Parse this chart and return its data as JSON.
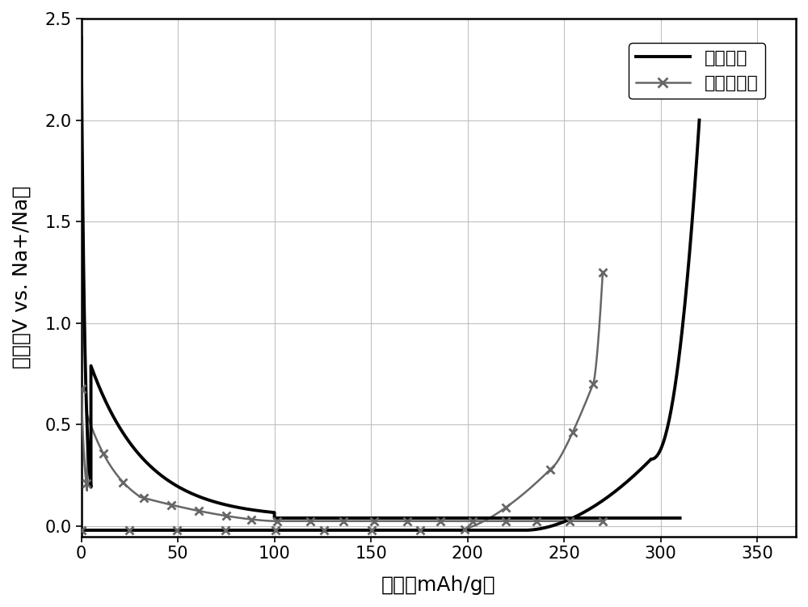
{
  "title": "",
  "xlabel": "容量（mAh/g）",
  "ylabel": "电压（V vs. Na+/Na）",
  "xlim": [
    0,
    370
  ],
  "ylim": [
    -0.05,
    2.5
  ],
  "xticks": [
    0,
    50,
    100,
    150,
    200,
    250,
    300,
    350
  ],
  "yticks": [
    0.0,
    0.5,
    1.0,
    1.5,
    2.0,
    2.5
  ],
  "legend1": "改性硬炭",
  "legend2": "未改性硬炭",
  "line1_color": "#000000",
  "line2_color": "#666666",
  "background_color": "#ffffff",
  "grid_color": "#bbbbbb"
}
